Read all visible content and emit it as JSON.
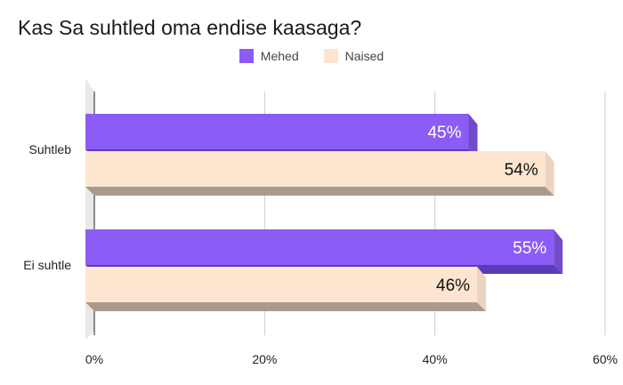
{
  "chart_data": {
    "type": "bar",
    "orientation": "horizontal",
    "title": "Kas Sa suhtled oma endise kaasaga?",
    "categories": [
      "Suhtleb",
      "Ei suhtle"
    ],
    "series": [
      {
        "name": "Mehed",
        "values": [
          45,
          55
        ],
        "labels": [
          "45%",
          "55%"
        ],
        "color": "#8b5cf6",
        "label_color": "#ffffff"
      },
      {
        "name": "Naised",
        "values": [
          54,
          46
        ],
        "labels": [
          "54%",
          "46%"
        ],
        "color": "#fde5cf",
        "label_color": "#111111"
      }
    ],
    "xlim": [
      0,
      60
    ],
    "xticks": [
      0,
      20,
      40,
      60
    ],
    "xtick_labels": [
      "0%",
      "20%",
      "40%",
      "60%"
    ],
    "legend_position": "top-center",
    "grid": true,
    "style": "3d"
  }
}
